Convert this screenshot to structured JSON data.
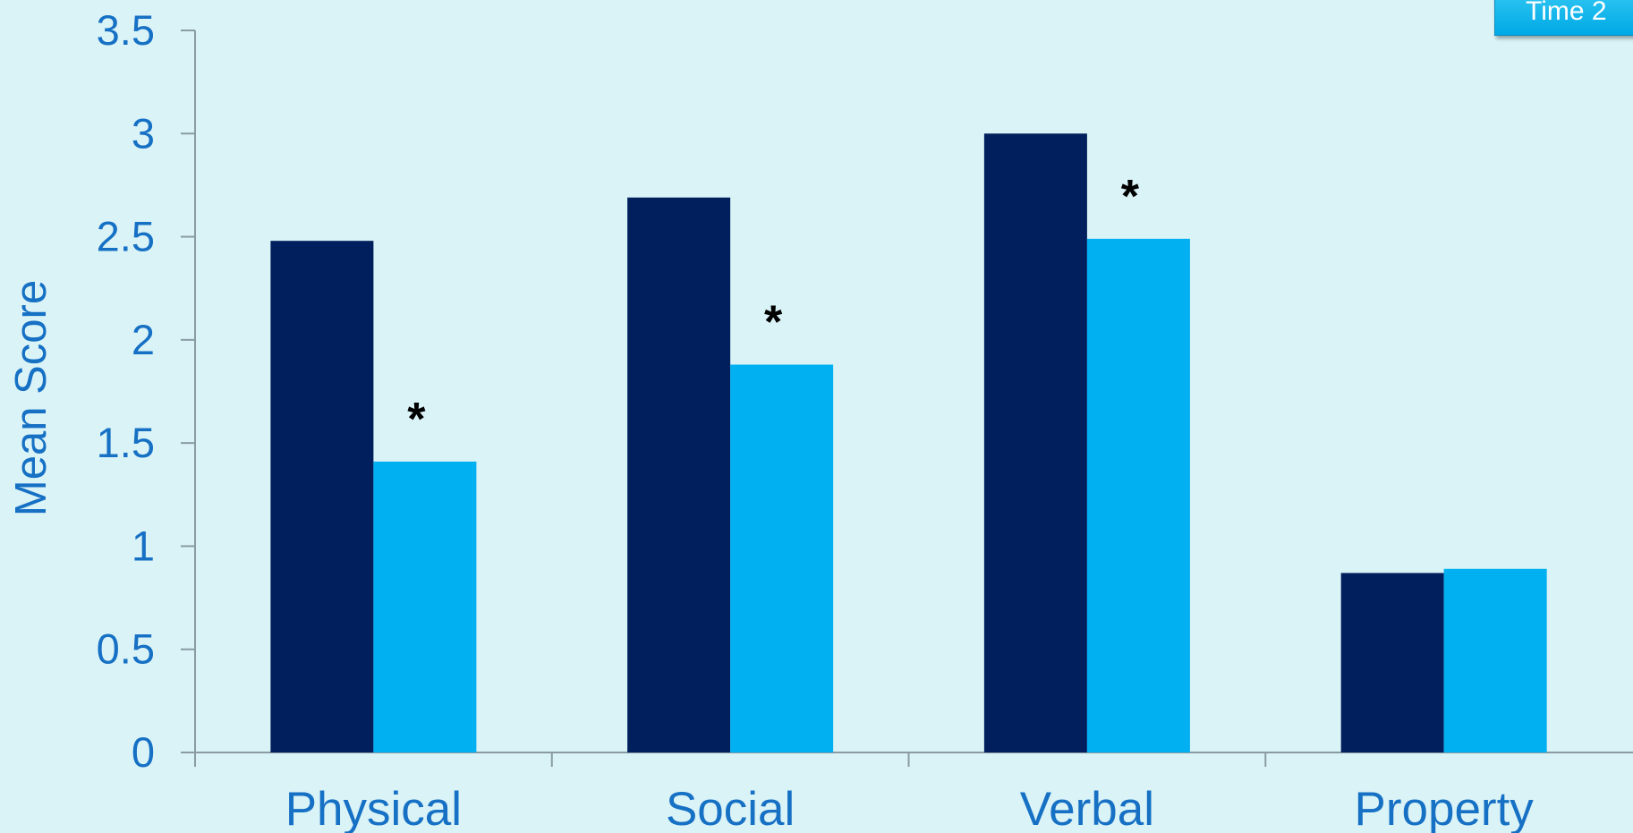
{
  "chart_data": {
    "type": "bar",
    "categories": [
      "Physical",
      "Social",
      "Verbal",
      "Property"
    ],
    "series": [
      {
        "values": [
          2.48,
          2.69,
          3.0,
          0.87
        ],
        "color": "#001f5c"
      },
      {
        "name": "Time 2",
        "values": [
          1.41,
          1.88,
          2.49,
          0.89
        ],
        "color": "#00b0f0"
      }
    ],
    "significance_marks": [
      "*",
      "*",
      "*",
      ""
    ],
    "ylabel": "Mean Score",
    "xlabel": "",
    "ylim": [
      0,
      3.5
    ],
    "yticks": [
      "0",
      "0.5",
      "1",
      "1.5",
      "2",
      "2.5",
      "3",
      "3.5"
    ],
    "grid": false,
    "legend_position": "top-right"
  }
}
